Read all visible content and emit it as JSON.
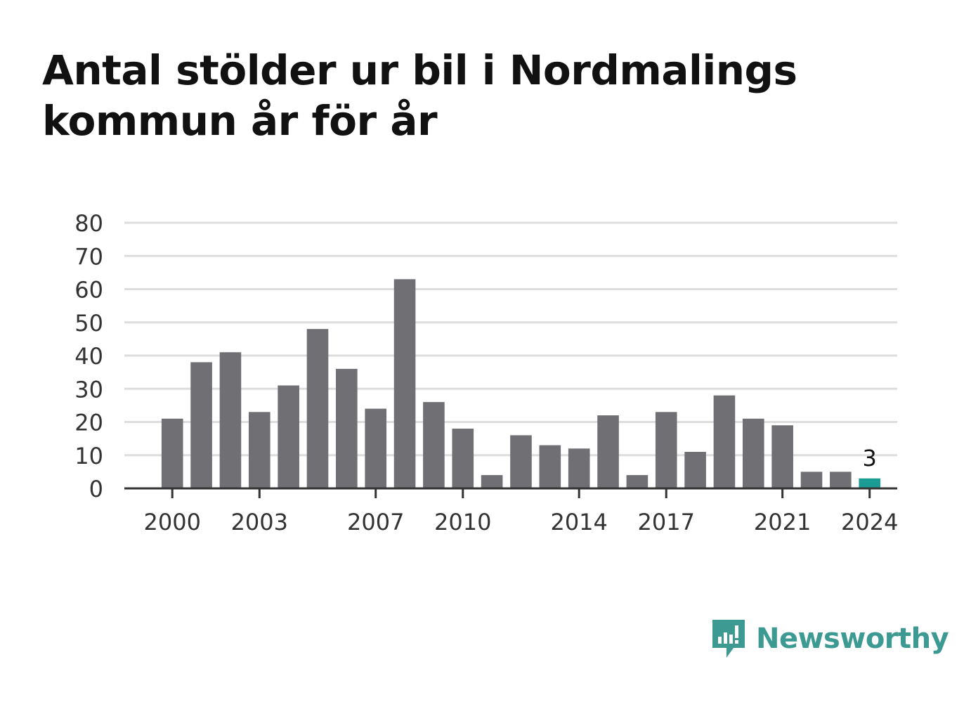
{
  "chart_data": {
    "type": "bar",
    "title": "Antal stölder ur bil i Nordmalings kommun år för år",
    "categories": [
      "2000",
      "2001",
      "2002",
      "2003",
      "2004",
      "2005",
      "2006",
      "2007",
      "2008",
      "2009",
      "2010",
      "2011",
      "2012",
      "2013",
      "2014",
      "2015",
      "2016",
      "2017",
      "2018",
      "2019",
      "2020",
      "2021",
      "2022",
      "2023",
      "2024"
    ],
    "values": [
      21,
      38,
      41,
      23,
      31,
      48,
      36,
      24,
      63,
      26,
      18,
      4,
      16,
      13,
      12,
      22,
      4,
      23,
      11,
      28,
      21,
      19,
      5,
      5,
      3
    ],
    "x_tick_labels": [
      "2000",
      "2003",
      "2007",
      "2010",
      "2014",
      "2017",
      "2021",
      "2024"
    ],
    "y_ticks": [
      0,
      10,
      20,
      30,
      40,
      50,
      60,
      70,
      80
    ],
    "ylim": [
      0,
      80
    ],
    "highlight": {
      "category": "2024",
      "label": "3"
    },
    "colors": {
      "bar": "#706f74",
      "highlight": "#1a9c95",
      "grid": "#dddddd",
      "axis": "#333333"
    },
    "grid": true,
    "legend": "none"
  },
  "branding": {
    "name": "Newsworthy",
    "icon": "newsworthy-logo-icon",
    "color": "#3d9a93"
  }
}
